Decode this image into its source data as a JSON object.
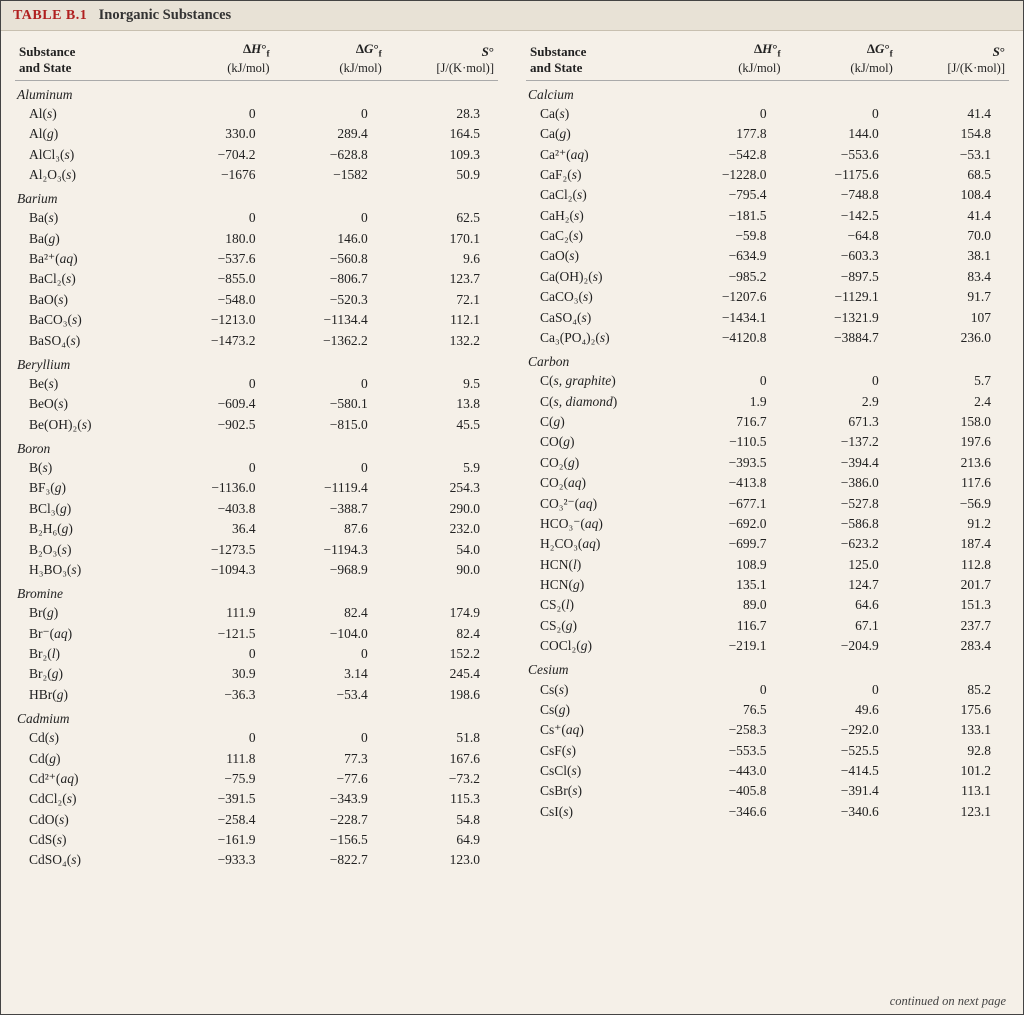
{
  "title_label": "TABLE B.1",
  "title_text": "Inorganic Substances",
  "footer": "continued on next page",
  "headers": {
    "col1_a": "Substance",
    "col1_b": "and State",
    "col2_a": "ΔH°f",
    "col2_b": "(kJ/mol)",
    "col3_a": "ΔG°f",
    "col3_b": "(kJ/mol)",
    "col4_a": "S°",
    "col4_b": "[J/(K·mol)]"
  },
  "style": {
    "bg": "#f5f0e8",
    "title_bg": "#e8e2d6",
    "title_red": "#b02020",
    "rule": "#aaa",
    "font_body_pt": 13.5,
    "font_header_pt": 13,
    "table_type": "table",
    "columns_layout": "two-column"
  },
  "left": [
    {
      "section": "Aluminum"
    },
    {
      "name": "Al(s)",
      "dh": "0",
      "dg": "0",
      "s": "28.3"
    },
    {
      "name": "Al(g)",
      "dh": "330.0",
      "dg": "289.4",
      "s": "164.5"
    },
    {
      "name": "AlCl₃(s)",
      "dh": "−704.2",
      "dg": "−628.8",
      "s": "109.3"
    },
    {
      "name": "Al₂O₃(s)",
      "dh": "−1676",
      "dg": "−1582",
      "s": "50.9"
    },
    {
      "section": "Barium"
    },
    {
      "name": "Ba(s)",
      "dh": "0",
      "dg": "0",
      "s": "62.5"
    },
    {
      "name": "Ba(g)",
      "dh": "180.0",
      "dg": "146.0",
      "s": "170.1"
    },
    {
      "name": "Ba²⁺(aq)",
      "dh": "−537.6",
      "dg": "−560.8",
      "s": "9.6"
    },
    {
      "name": "BaCl₂(s)",
      "dh": "−855.0",
      "dg": "−806.7",
      "s": "123.7"
    },
    {
      "name": "BaO(s)",
      "dh": "−548.0",
      "dg": "−520.3",
      "s": "72.1"
    },
    {
      "name": "BaCO₃(s)",
      "dh": "−1213.0",
      "dg": "−1134.4",
      "s": "112.1"
    },
    {
      "name": "BaSO₄(s)",
      "dh": "−1473.2",
      "dg": "−1362.2",
      "s": "132.2"
    },
    {
      "section": "Beryllium"
    },
    {
      "name": "Be(s)",
      "dh": "0",
      "dg": "0",
      "s": "9.5"
    },
    {
      "name": "BeO(s)",
      "dh": "−609.4",
      "dg": "−580.1",
      "s": "13.8"
    },
    {
      "name": "Be(OH)₂(s)",
      "dh": "−902.5",
      "dg": "−815.0",
      "s": "45.5"
    },
    {
      "section": "Boron"
    },
    {
      "name": "B(s)",
      "dh": "0",
      "dg": "0",
      "s": "5.9"
    },
    {
      "name": "BF₃(g)",
      "dh": "−1136.0",
      "dg": "−1119.4",
      "s": "254.3"
    },
    {
      "name": "BCl₃(g)",
      "dh": "−403.8",
      "dg": "−388.7",
      "s": "290.0"
    },
    {
      "name": "B₂H₆(g)",
      "dh": "36.4",
      "dg": "87.6",
      "s": "232.0"
    },
    {
      "name": "B₂O₃(s)",
      "dh": "−1273.5",
      "dg": "−1194.3",
      "s": "54.0"
    },
    {
      "name": "H₃BO₃(s)",
      "dh": "−1094.3",
      "dg": "−968.9",
      "s": "90.0"
    },
    {
      "section": "Bromine"
    },
    {
      "name": "Br(g)",
      "dh": "111.9",
      "dg": "82.4",
      "s": "174.9"
    },
    {
      "name": "Br⁻(aq)",
      "dh": "−121.5",
      "dg": "−104.0",
      "s": "82.4"
    },
    {
      "name": "Br₂(l)",
      "dh": "0",
      "dg": "0",
      "s": "152.2"
    },
    {
      "name": "Br₂(g)",
      "dh": "30.9",
      "dg": "3.14",
      "s": "245.4"
    },
    {
      "name": "HBr(g)",
      "dh": "−36.3",
      "dg": "−53.4",
      "s": "198.6"
    },
    {
      "section": "Cadmium"
    },
    {
      "name": "Cd(s)",
      "dh": "0",
      "dg": "0",
      "s": "51.8"
    },
    {
      "name": "Cd(g)",
      "dh": "111.8",
      "dg": "77.3",
      "s": "167.6"
    },
    {
      "name": "Cd²⁺(aq)",
      "dh": "−75.9",
      "dg": "−77.6",
      "s": "−73.2"
    },
    {
      "name": "CdCl₂(s)",
      "dh": "−391.5",
      "dg": "−343.9",
      "s": "115.3"
    },
    {
      "name": "CdO(s)",
      "dh": "−258.4",
      "dg": "−228.7",
      "s": "54.8"
    },
    {
      "name": "CdS(s)",
      "dh": "−161.9",
      "dg": "−156.5",
      "s": "64.9"
    },
    {
      "name": "CdSO₄(s)",
      "dh": "−933.3",
      "dg": "−822.7",
      "s": "123.0"
    }
  ],
  "right": [
    {
      "section": "Calcium"
    },
    {
      "name": "Ca(s)",
      "dh": "0",
      "dg": "0",
      "s": "41.4"
    },
    {
      "name": "Ca(g)",
      "dh": "177.8",
      "dg": "144.0",
      "s": "154.8"
    },
    {
      "name": "Ca²⁺(aq)",
      "dh": "−542.8",
      "dg": "−553.6",
      "s": "−53.1"
    },
    {
      "name": "CaF₂(s)",
      "dh": "−1228.0",
      "dg": "−1175.6",
      "s": "68.5"
    },
    {
      "name": "CaCl₂(s)",
      "dh": "−795.4",
      "dg": "−748.8",
      "s": "108.4"
    },
    {
      "name": "CaH₂(s)",
      "dh": "−181.5",
      "dg": "−142.5",
      "s": "41.4"
    },
    {
      "name": "CaC₂(s)",
      "dh": "−59.8",
      "dg": "−64.8",
      "s": "70.0"
    },
    {
      "name": "CaO(s)",
      "dh": "−634.9",
      "dg": "−603.3",
      "s": "38.1"
    },
    {
      "name": "Ca(OH)₂(s)",
      "dh": "−985.2",
      "dg": "−897.5",
      "s": "83.4"
    },
    {
      "name": "CaCO₃(s)",
      "dh": "−1207.6",
      "dg": "−1129.1",
      "s": "91.7"
    },
    {
      "name": "CaSO₄(s)",
      "dh": "−1434.1",
      "dg": "−1321.9",
      "s": "107"
    },
    {
      "name": "Ca₃(PO₄)₂(s)",
      "dh": "−4120.8",
      "dg": "−3884.7",
      "s": "236.0"
    },
    {
      "section": "Carbon"
    },
    {
      "name": "C(s, graphite)",
      "dh": "0",
      "dg": "0",
      "s": "5.7"
    },
    {
      "name": "C(s, diamond)",
      "dh": "1.9",
      "dg": "2.9",
      "s": "2.4"
    },
    {
      "name": "C(g)",
      "dh": "716.7",
      "dg": "671.3",
      "s": "158.0"
    },
    {
      "name": "CO(g)",
      "dh": "−110.5",
      "dg": "−137.2",
      "s": "197.6"
    },
    {
      "name": "CO₂(g)",
      "dh": "−393.5",
      "dg": "−394.4",
      "s": "213.6"
    },
    {
      "name": "CO₂(aq)",
      "dh": "−413.8",
      "dg": "−386.0",
      "s": "117.6"
    },
    {
      "name": "CO₃²⁻(aq)",
      "dh": "−677.1",
      "dg": "−527.8",
      "s": "−56.9"
    },
    {
      "name": "HCO₃⁻(aq)",
      "dh": "−692.0",
      "dg": "−586.8",
      "s": "91.2"
    },
    {
      "name": "H₂CO₃(aq)",
      "dh": "−699.7",
      "dg": "−623.2",
      "s": "187.4"
    },
    {
      "name": "HCN(l)",
      "dh": "108.9",
      "dg": "125.0",
      "s": "112.8"
    },
    {
      "name": "HCN(g)",
      "dh": "135.1",
      "dg": "124.7",
      "s": "201.7"
    },
    {
      "name": "CS₂(l)",
      "dh": "89.0",
      "dg": "64.6",
      "s": "151.3"
    },
    {
      "name": "CS₂(g)",
      "dh": "116.7",
      "dg": "67.1",
      "s": "237.7"
    },
    {
      "name": "COCl₂(g)",
      "dh": "−219.1",
      "dg": "−204.9",
      "s": "283.4"
    },
    {
      "section": "Cesium"
    },
    {
      "name": "Cs(s)",
      "dh": "0",
      "dg": "0",
      "s": "85.2"
    },
    {
      "name": "Cs(g)",
      "dh": "76.5",
      "dg": "49.6",
      "s": "175.6"
    },
    {
      "name": "Cs⁺(aq)",
      "dh": "−258.3",
      "dg": "−292.0",
      "s": "133.1"
    },
    {
      "name": "CsF(s)",
      "dh": "−553.5",
      "dg": "−525.5",
      "s": "92.8"
    },
    {
      "name": "CsCl(s)",
      "dh": "−443.0",
      "dg": "−414.5",
      "s": "101.2"
    },
    {
      "name": "CsBr(s)",
      "dh": "−405.8",
      "dg": "−391.4",
      "s": "113.1"
    },
    {
      "name": "CsI(s)",
      "dh": "−346.6",
      "dg": "−340.6",
      "s": "123.1"
    }
  ]
}
